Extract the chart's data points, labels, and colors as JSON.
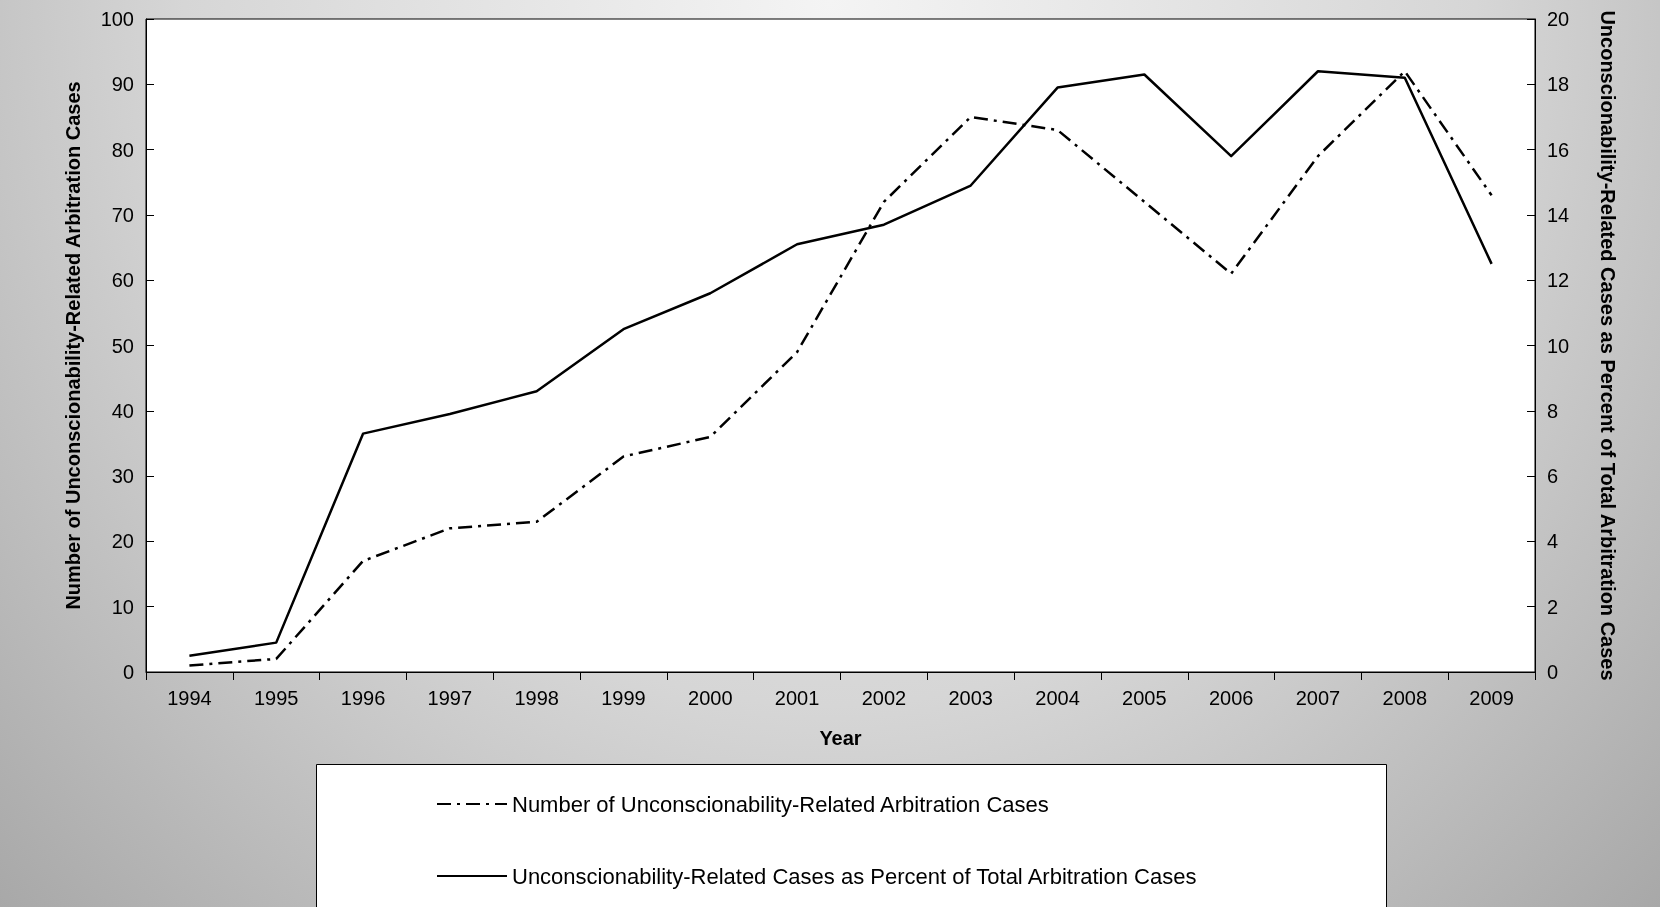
{
  "chart_data": {
    "type": "line",
    "xlabel": "Year",
    "ylabel": "Number of Unconscionability-Related Arbitration Cases",
    "y2label": "Unconscionability-Related Cases as Percent of Total Arbitration Cases",
    "categories": [
      "1994",
      "1995",
      "1996",
      "1997",
      "1998",
      "1999",
      "2000",
      "2001",
      "2002",
      "2003",
      "2004",
      "2005",
      "2006",
      "2007",
      "2008",
      "2009"
    ],
    "series": [
      {
        "name": "Number of Unconscionability-Related Arbitration Cases",
        "color": "#000000",
        "line_style": "dashdot",
        "values": [
          1,
          2,
          17,
          22,
          23,
          33,
          36,
          49,
          72,
          85,
          83,
          72,
          61,
          79,
          92,
          73
        ]
      },
      {
        "name": "Unconscionability-Related Cases as Percent of Total Arbitration Cases",
        "color": "#000000",
        "line_style": "solid",
        "axis": "y2",
        "values": [
          0.5,
          0.9,
          7.3,
          7.9,
          8.6,
          10.5,
          11.6,
          13.1,
          13.7,
          14.9,
          17.9,
          18.3,
          15.8,
          18.4,
          18.2,
          12.5
        ]
      }
    ],
    "ylim": [
      0,
      100
    ],
    "yticks": [
      0,
      10,
      20,
      30,
      40,
      50,
      60,
      70,
      80,
      90,
      100
    ],
    "y2lim": [
      0,
      20
    ],
    "y2ticks": [
      0,
      2,
      4,
      6,
      8,
      10,
      12,
      14,
      16,
      18,
      20
    ],
    "grid": false,
    "legend": "bottom",
    "marker": "none"
  }
}
